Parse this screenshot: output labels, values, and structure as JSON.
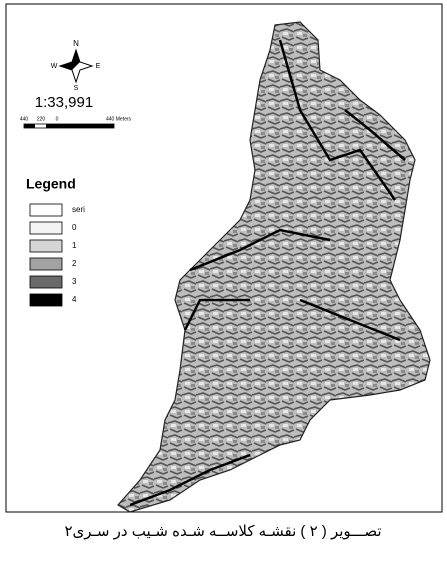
{
  "map": {
    "compass": {
      "north": "N",
      "west": "W",
      "east": "E",
      "south": "S"
    },
    "scale_text": "1:33,991",
    "scale_bar": [
      "440",
      "220",
      "0",
      "440 Meters"
    ],
    "legend": {
      "title": "Legend",
      "items": [
        {
          "label": "seri",
          "color": "#ffffff"
        },
        {
          "label": "0",
          "color": "#f4f4f4"
        },
        {
          "label": "1",
          "color": "#d6d6d6"
        },
        {
          "label": "2",
          "color": "#a3a3a3"
        },
        {
          "label": "3",
          "color": "#6a6a6a"
        },
        {
          "label": "4",
          "color": "#000000"
        }
      ]
    }
  },
  "caption": "تصـــویر ( ۲ ) نقشـه کلاســه شـده شـیب در سـری۲"
}
